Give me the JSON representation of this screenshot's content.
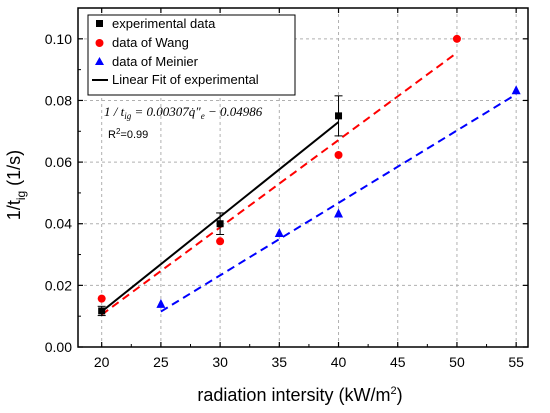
{
  "chart_data": {
    "type": "scatter",
    "xlabel": "radiation intersity (kW/m",
    "xlabel_sup": "2",
    "xlabel_end": ")",
    "ylabel_main": "1/t",
    "ylabel_sub": "ig",
    "ylabel_unit": " (1/s)",
    "xlim": [
      18,
      56
    ],
    "ylim": [
      0,
      0.11
    ],
    "xticks": [
      20,
      25,
      30,
      35,
      40,
      45,
      50,
      55
    ],
    "yticks": [
      0.0,
      0.02,
      0.04,
      0.06,
      0.08,
      0.1
    ],
    "ytick_labels": [
      "0.00",
      "0.02",
      "0.04",
      "0.06",
      "0.08",
      "0.10"
    ],
    "grid": true,
    "legend_position": "top-left",
    "series": [
      {
        "name": "experimental data",
        "marker": "square",
        "color": "#000000",
        "points": [
          {
            "x": 20,
            "y": 0.0117,
            "err": 0.0015
          },
          {
            "x": 30,
            "y": 0.04,
            "err": 0.0035
          },
          {
            "x": 40,
            "y": 0.075,
            "err": 0.0065
          }
        ]
      },
      {
        "name": "data of Wang",
        "marker": "circle",
        "color": "#ff0000",
        "points": [
          {
            "x": 20,
            "y": 0.0157
          },
          {
            "x": 30,
            "y": 0.0343
          },
          {
            "x": 40,
            "y": 0.0623
          },
          {
            "x": 50,
            "y": 0.1
          }
        ]
      },
      {
        "name": "data of Meinier",
        "marker": "triangle",
        "color": "#0000ff",
        "points": [
          {
            "x": 25,
            "y": 0.014
          },
          {
            "x": 35,
            "y": 0.037
          },
          {
            "x": 40,
            "y": 0.0433
          },
          {
            "x": 55,
            "y": 0.0833
          }
        ]
      },
      {
        "name": "Linear Fit of experimental",
        "marker": "line",
        "color": "#000000"
      }
    ],
    "fit_lines": [
      {
        "color": "#000000",
        "dash": "none",
        "x0": 20,
        "y0": 0.0115,
        "x1": 40,
        "y1": 0.073
      },
      {
        "color": "#ff0000",
        "dash": "dashed",
        "x0": 20,
        "y0": 0.0105,
        "x1": 50,
        "y1": 0.0955
      },
      {
        "color": "#0000ff",
        "dash": "dashed",
        "x0": 25,
        "y0": 0.0115,
        "x1": 55,
        "y1": 0.082
      }
    ],
    "annotations": {
      "equation": "1 / t",
      "equation_sub": "ig",
      "equation_rest": " = 0.00307q̇″",
      "equation_sub2": "e",
      "equation_end": " − 0.04986",
      "r2_label": "R",
      "r2_sup": "2",
      "r2_value": "=0.99"
    }
  }
}
